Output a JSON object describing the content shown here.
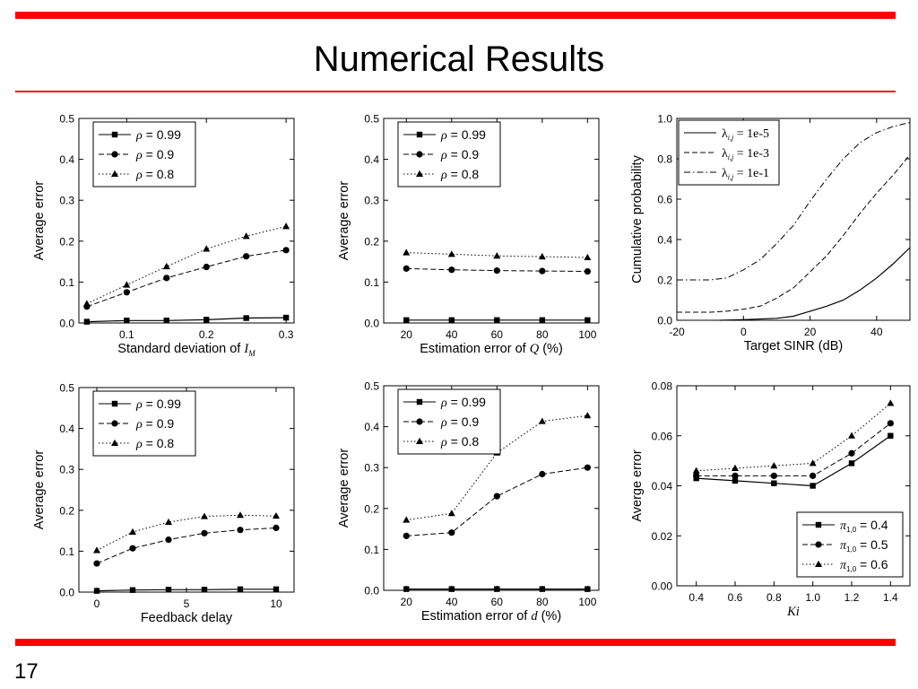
{
  "slide": {
    "title": "Numerical Results",
    "page_number": "17",
    "accent_color": "#ff0000"
  },
  "chart_data": [
    {
      "id": "c1",
      "type": "line",
      "xlabel": "Standard deviation of I_M",
      "ylabel": "Average error",
      "xlim": [
        0.04,
        0.31
      ],
      "ylim": [
        0,
        0.5
      ],
      "xticks": [
        0.1,
        0.2,
        0.3
      ],
      "xtick_labels": [
        "0.1",
        "0.2",
        "0.3"
      ],
      "yticks": [
        0,
        0.1,
        0.2,
        0.3,
        0.4,
        0.5
      ],
      "ytick_labels": [
        "0.0",
        "0.1",
        "0.2",
        "0.3",
        "0.4",
        "0.5"
      ],
      "legend_position": "top-left",
      "series": [
        {
          "name": "ρ = 0.99",
          "style": "solid",
          "marker": "square",
          "x": [
            0.05,
            0.1,
            0.15,
            0.2,
            0.25,
            0.3
          ],
          "y": [
            0.003,
            0.006,
            0.006,
            0.008,
            0.012,
            0.013
          ]
        },
        {
          "name": "ρ = 0.9",
          "style": "dashed",
          "marker": "circle",
          "x": [
            0.05,
            0.1,
            0.15,
            0.2,
            0.25,
            0.3
          ],
          "y": [
            0.04,
            0.075,
            0.11,
            0.137,
            0.163,
            0.178
          ]
        },
        {
          "name": "ρ = 0.8",
          "style": "dotted",
          "marker": "triangle",
          "x": [
            0.05,
            0.1,
            0.15,
            0.2,
            0.25,
            0.3
          ],
          "y": [
            0.047,
            0.093,
            0.138,
            0.181,
            0.212,
            0.236
          ]
        }
      ]
    },
    {
      "id": "c2",
      "type": "line",
      "xlabel": "Estimation error of Q (%)",
      "ylabel": "Average error",
      "xlim": [
        10,
        105
      ],
      "ylim": [
        0,
        0.5
      ],
      "xticks": [
        20,
        40,
        60,
        80,
        100
      ],
      "xtick_labels": [
        "20",
        "40",
        "60",
        "80",
        "100"
      ],
      "yticks": [
        0,
        0.1,
        0.2,
        0.3,
        0.4,
        0.5
      ],
      "ytick_labels": [
        "0.0",
        "0.1",
        "0.2",
        "0.3",
        "0.4",
        "0.5"
      ],
      "legend_position": "top-left",
      "series": [
        {
          "name": "ρ = 0.99",
          "style": "solid",
          "marker": "square",
          "x": [
            20,
            40,
            60,
            80,
            100
          ],
          "y": [
            0.007,
            0.007,
            0.007,
            0.007,
            0.007
          ]
        },
        {
          "name": "ρ = 0.9",
          "style": "dashed",
          "marker": "circle",
          "x": [
            20,
            40,
            60,
            80,
            100
          ],
          "y": [
            0.133,
            0.13,
            0.128,
            0.127,
            0.126
          ]
        },
        {
          "name": "ρ = 0.8",
          "style": "dotted",
          "marker": "triangle",
          "x": [
            20,
            40,
            60,
            80,
            100
          ],
          "y": [
            0.172,
            0.168,
            0.164,
            0.162,
            0.16
          ]
        }
      ]
    },
    {
      "id": "c3",
      "type": "line",
      "xlabel": "Target SINR (dB)",
      "ylabel": "Cumulative probability",
      "xlim": [
        -20,
        50
      ],
      "ylim": [
        0,
        1
      ],
      "xticks": [
        -20,
        0,
        20,
        40
      ],
      "xtick_labels": [
        "-20",
        "0",
        "20",
        "40"
      ],
      "yticks": [
        0,
        0.2,
        0.4,
        0.6,
        0.8,
        1.0
      ],
      "ytick_labels": [
        "0.0",
        "0.2",
        "0.4",
        "0.6",
        "0.8",
        "1.0"
      ],
      "legend_position": "top-left",
      "series": [
        {
          "name": "λi,j = 1e-5",
          "style": "solid",
          "marker": "none",
          "x": [
            -7,
            0,
            10,
            15,
            20,
            25,
            30,
            35,
            40,
            45,
            50
          ],
          "y": [
            0,
            0.003,
            0.01,
            0.02,
            0.045,
            0.07,
            0.1,
            0.15,
            0.21,
            0.28,
            0.36
          ]
        },
        {
          "name": "λi,j = 1e-3",
          "style": "dashed",
          "marker": "none",
          "x": [
            -20,
            -10,
            -5,
            0,
            5,
            10,
            15,
            20,
            25,
            30,
            35,
            40,
            45,
            50
          ],
          "y": [
            0.04,
            0.04,
            0.045,
            0.055,
            0.07,
            0.11,
            0.16,
            0.24,
            0.32,
            0.42,
            0.53,
            0.63,
            0.72,
            0.82
          ]
        },
        {
          "name": "λi,j = 1e-1",
          "style": "dashdot",
          "marker": "none",
          "x": [
            -20,
            -10,
            -5,
            0,
            5,
            10,
            15,
            20,
            25,
            30,
            35,
            40,
            45,
            50
          ],
          "y": [
            0.2,
            0.2,
            0.21,
            0.25,
            0.3,
            0.38,
            0.47,
            0.59,
            0.7,
            0.8,
            0.88,
            0.93,
            0.96,
            0.98
          ]
        }
      ]
    },
    {
      "id": "c4",
      "type": "line",
      "xlabel": "Feedback delay",
      "ylabel": "Average error",
      "xlim": [
        -1,
        11
      ],
      "ylim": [
        0,
        0.5
      ],
      "xticks": [
        0,
        5,
        10
      ],
      "xtick_labels": [
        "0",
        "5",
        "10"
      ],
      "yticks": [
        0,
        0.1,
        0.2,
        0.3,
        0.4,
        0.5
      ],
      "ytick_labels": [
        "0.0",
        "0.1",
        "0.2",
        "0.3",
        "0.4",
        "0.5"
      ],
      "legend_position": "top-left",
      "series": [
        {
          "name": "ρ = 0.99",
          "style": "solid",
          "marker": "square",
          "x": [
            0,
            2,
            4,
            6,
            8,
            10
          ],
          "y": [
            0.003,
            0.005,
            0.006,
            0.006,
            0.007,
            0.007
          ]
        },
        {
          "name": "ρ = 0.9",
          "style": "dashed",
          "marker": "circle",
          "x": [
            0,
            2,
            4,
            6,
            8,
            10
          ],
          "y": [
            0.07,
            0.107,
            0.128,
            0.144,
            0.152,
            0.157
          ]
        },
        {
          "name": "ρ = 0.8",
          "style": "dotted",
          "marker": "triangle",
          "x": [
            0,
            2,
            4,
            6,
            8,
            10
          ],
          "y": [
            0.102,
            0.147,
            0.171,
            0.185,
            0.188,
            0.186
          ]
        }
      ]
    },
    {
      "id": "c5",
      "type": "line",
      "xlabel": "Estimation error of d (%)",
      "ylabel": "Average error",
      "xlim": [
        10,
        105
      ],
      "ylim": [
        0,
        0.5
      ],
      "xticks": [
        20,
        40,
        60,
        80,
        100
      ],
      "xtick_labels": [
        "20",
        "40",
        "60",
        "80",
        "100"
      ],
      "yticks": [
        0,
        0.1,
        0.2,
        0.3,
        0.4,
        0.5
      ],
      "ytick_labels": [
        "0.0",
        "0.1",
        "0.2",
        "0.3",
        "0.4",
        "0.5"
      ],
      "legend_position": "top-left",
      "series": [
        {
          "name": "ρ = 0.99",
          "style": "solid",
          "marker": "square",
          "x": [
            20,
            40,
            60,
            80,
            100
          ],
          "y": [
            0.003,
            0.003,
            0.003,
            0.003,
            0.003
          ]
        },
        {
          "name": "ρ = 0.9",
          "style": "dashed",
          "marker": "circle",
          "x": [
            20,
            40,
            60,
            80,
            100
          ],
          "y": [
            0.133,
            0.141,
            0.23,
            0.284,
            0.3
          ]
        },
        {
          "name": "ρ = 0.8",
          "style": "dotted",
          "marker": "triangle",
          "x": [
            20,
            40,
            60,
            80,
            100
          ],
          "y": [
            0.172,
            0.188,
            0.336,
            0.413,
            0.427
          ]
        }
      ]
    },
    {
      "id": "c6",
      "type": "line",
      "xlabel": "Ki",
      "ylabel": "Averge error",
      "xlim": [
        0.3,
        1.5
      ],
      "ylim": [
        0,
        0.08
      ],
      "xticks": [
        0.4,
        0.6,
        0.8,
        1.0,
        1.2,
        1.4
      ],
      "xtick_labels": [
        "0.4",
        "0.6",
        "0.8",
        "1.0",
        "1.2",
        "1.4"
      ],
      "yticks": [
        0,
        0.02,
        0.04,
        0.06,
        0.08
      ],
      "ytick_labels": [
        "0.00",
        "0.02",
        "0.04",
        "0.06",
        "0.08"
      ],
      "legend_position": "bottom-right",
      "series": [
        {
          "name": "π1,0 = 0.4",
          "style": "solid",
          "marker": "square",
          "x": [
            0.4,
            0.6,
            0.8,
            1.0,
            1.2,
            1.4
          ],
          "y": [
            0.043,
            0.042,
            0.041,
            0.04,
            0.049,
            0.06
          ]
        },
        {
          "name": "π1,0 = 0.5",
          "style": "dashed",
          "marker": "circle",
          "x": [
            0.4,
            0.6,
            0.8,
            1.0,
            1.2,
            1.4
          ],
          "y": [
            0.044,
            0.044,
            0.044,
            0.044,
            0.053,
            0.065
          ]
        },
        {
          "name": "π1,0 = 0.6",
          "style": "dotted",
          "marker": "triangle",
          "x": [
            0.4,
            0.6,
            0.8,
            1.0,
            1.2,
            1.4
          ],
          "y": [
            0.046,
            0.047,
            0.048,
            0.049,
            0.06,
            0.073
          ]
        }
      ]
    }
  ]
}
